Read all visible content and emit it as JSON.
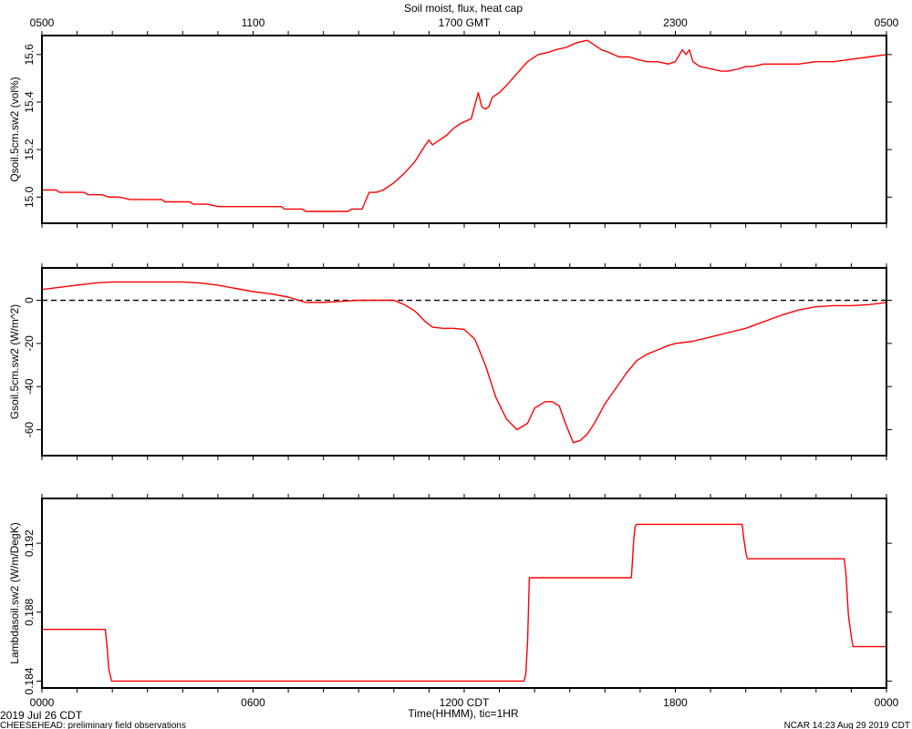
{
  "title": "Soil moist, flux, heat cap",
  "top_axis": {
    "labels": [
      "0500",
      "1100",
      "1700 GMT",
      "2300",
      "0500"
    ],
    "hours": [
      0,
      6,
      12,
      18,
      24
    ]
  },
  "bottom_axis": {
    "labels": [
      "0000",
      "0600",
      "1200 CDT",
      "1800",
      "0000"
    ],
    "hours": [
      0,
      6,
      12,
      18,
      24
    ],
    "xlabel": "Time(HHMM), tic=1HR"
  },
  "footer": {
    "date": "2019 Jul 26 CDT",
    "source": "CHEESEHEAD: preliminary field observations",
    "stamp": "NCAR 14:23 Aug 29 2019 CDT"
  },
  "colors": {
    "series": "#ff0000",
    "frame": "#000000",
    "zero_line": "#000000"
  },
  "chart_data": [
    {
      "type": "line",
      "ylabel": "Qsoil.5cm.sw2 (vol%)",
      "xlim": [
        0,
        24
      ],
      "ylim": [
        14.89,
        15.68
      ],
      "yticks": [
        15.0,
        15.2,
        15.4,
        15.6
      ],
      "ytick_labels": [
        "15.0",
        "15.2",
        "15.4",
        "15.6"
      ],
      "series": [
        {
          "x": [
            0,
            0.4,
            0.5,
            1.2,
            1.3,
            1.7,
            1.9,
            2.2,
            2.5,
            3.4,
            3.5,
            4.2,
            4.3,
            4.7,
            5.0,
            6.0,
            6.8,
            6.9,
            7.4,
            7.5,
            8.0,
            8.5,
            8.7,
            8.8,
            9.1,
            9.3,
            9.5,
            9.7,
            10.0,
            10.3,
            10.6,
            10.9,
            11.0,
            11.1,
            11.3,
            11.5,
            11.7,
            11.9,
            12.2,
            12.4,
            12.5,
            12.6,
            12.7,
            12.8,
            12.9,
            13.0,
            13.2,
            13.5,
            13.8,
            14.1,
            14.4,
            14.6,
            14.9,
            15.2,
            15.5,
            15.7,
            15.9,
            16.1,
            16.4,
            16.7,
            16.9,
            17.2,
            17.5,
            17.8,
            18.0,
            18.2,
            18.3,
            18.4,
            18.5,
            18.6,
            18.7,
            19.0,
            19.3,
            19.5,
            19.8,
            20.0,
            20.2,
            20.5,
            21.0,
            21.5,
            22.0,
            22.5,
            23.0,
            23.5,
            24.0
          ],
          "y": [
            15.03,
            15.03,
            15.02,
            15.02,
            15.01,
            15.01,
            15.0,
            15.0,
            14.99,
            14.99,
            14.98,
            14.98,
            14.97,
            14.97,
            14.96,
            14.96,
            14.96,
            14.95,
            14.95,
            14.94,
            14.94,
            14.94,
            14.94,
            14.95,
            14.95,
            15.02,
            15.02,
            15.03,
            15.06,
            15.1,
            15.15,
            15.22,
            15.24,
            15.22,
            15.24,
            15.26,
            15.29,
            15.31,
            15.33,
            15.44,
            15.38,
            15.37,
            15.38,
            15.42,
            15.43,
            15.44,
            15.47,
            15.52,
            15.57,
            15.6,
            15.61,
            15.62,
            15.63,
            15.65,
            15.66,
            15.64,
            15.62,
            15.61,
            15.59,
            15.59,
            15.58,
            15.57,
            15.57,
            15.56,
            15.57,
            15.62,
            15.6,
            15.62,
            15.57,
            15.56,
            15.55,
            15.54,
            15.53,
            15.53,
            15.54,
            15.55,
            15.55,
            15.56,
            15.56,
            15.56,
            15.57,
            15.57,
            15.58,
            15.59,
            15.6
          ]
        }
      ]
    },
    {
      "type": "line",
      "ylabel": "Gsoil.5cm.sw2 (W/m^2)",
      "xlim": [
        0,
        24
      ],
      "ylim": [
        -72,
        15
      ],
      "yticks": [
        -60,
        -40,
        -20,
        0
      ],
      "ytick_labels": [
        "-60",
        "-40",
        "-20",
        "0"
      ],
      "zero_line": true,
      "series": [
        {
          "x": [
            0,
            0.5,
            1.0,
            1.5,
            2.0,
            2.5,
            3.0,
            3.5,
            4.0,
            4.5,
            5.0,
            5.5,
            6.0,
            6.5,
            7.0,
            7.5,
            8.0,
            8.5,
            9.0,
            9.5,
            10.0,
            10.3,
            10.6,
            10.9,
            11.1,
            11.4,
            11.7,
            12.0,
            12.3,
            12.6,
            12.9,
            13.2,
            13.5,
            13.8,
            14.0,
            14.3,
            14.5,
            14.7,
            14.9,
            15.1,
            15.3,
            15.5,
            15.7,
            16.0,
            16.3,
            16.6,
            16.9,
            17.2,
            17.5,
            17.8,
            18.0,
            18.5,
            19.0,
            19.5,
            20.0,
            20.5,
            21.0,
            21.5,
            22.0,
            22.5,
            23.0,
            23.5,
            24.0
          ],
          "y": [
            5,
            6,
            7,
            8,
            8.5,
            8.5,
            8.5,
            8.5,
            8.5,
            8,
            7,
            5.5,
            4,
            3,
            1.5,
            -1,
            -1,
            -0.5,
            0,
            0,
            0,
            -2,
            -5,
            -10,
            -12.5,
            -13,
            -13,
            -13.5,
            -18,
            -30,
            -45,
            -55,
            -60,
            -57,
            -50,
            -47,
            -47,
            -49,
            -58,
            -66,
            -65,
            -62,
            -57,
            -48,
            -41,
            -34,
            -28,
            -25,
            -23,
            -21,
            -20,
            -19,
            -17,
            -15,
            -13,
            -10,
            -7,
            -4.5,
            -3,
            -2.5,
            -2.5,
            -2,
            -1
          ]
        }
      ]
    },
    {
      "type": "line",
      "ylabel": "Lambdasoil.sw2 (W/m/DegK)",
      "xlim": [
        0,
        24
      ],
      "ylim": [
        0.1836,
        0.1946
      ],
      "yticks": [
        0.184,
        0.188,
        0.192
      ],
      "ytick_labels": [
        "0.184",
        "0.188",
        "0.192"
      ],
      "series": [
        {
          "x": [
            0,
            1.8,
            1.85,
            1.9,
            1.98,
            2.0,
            13.7,
            13.75,
            13.8,
            13.85,
            16.75,
            16.82,
            16.86,
            16.9,
            19.9,
            19.95,
            20.02,
            20.05,
            22.8,
            22.85,
            22.92,
            23.0,
            23.05,
            24.0
          ],
          "y": [
            0.187,
            0.187,
            0.186,
            0.1847,
            0.184,
            0.184,
            0.184,
            0.1844,
            0.1863,
            0.19,
            0.19,
            0.1923,
            0.193,
            0.1931,
            0.1931,
            0.1922,
            0.1913,
            0.1911,
            0.1911,
            0.1902,
            0.1878,
            0.1866,
            0.186,
            0.186
          ]
        }
      ]
    }
  ]
}
